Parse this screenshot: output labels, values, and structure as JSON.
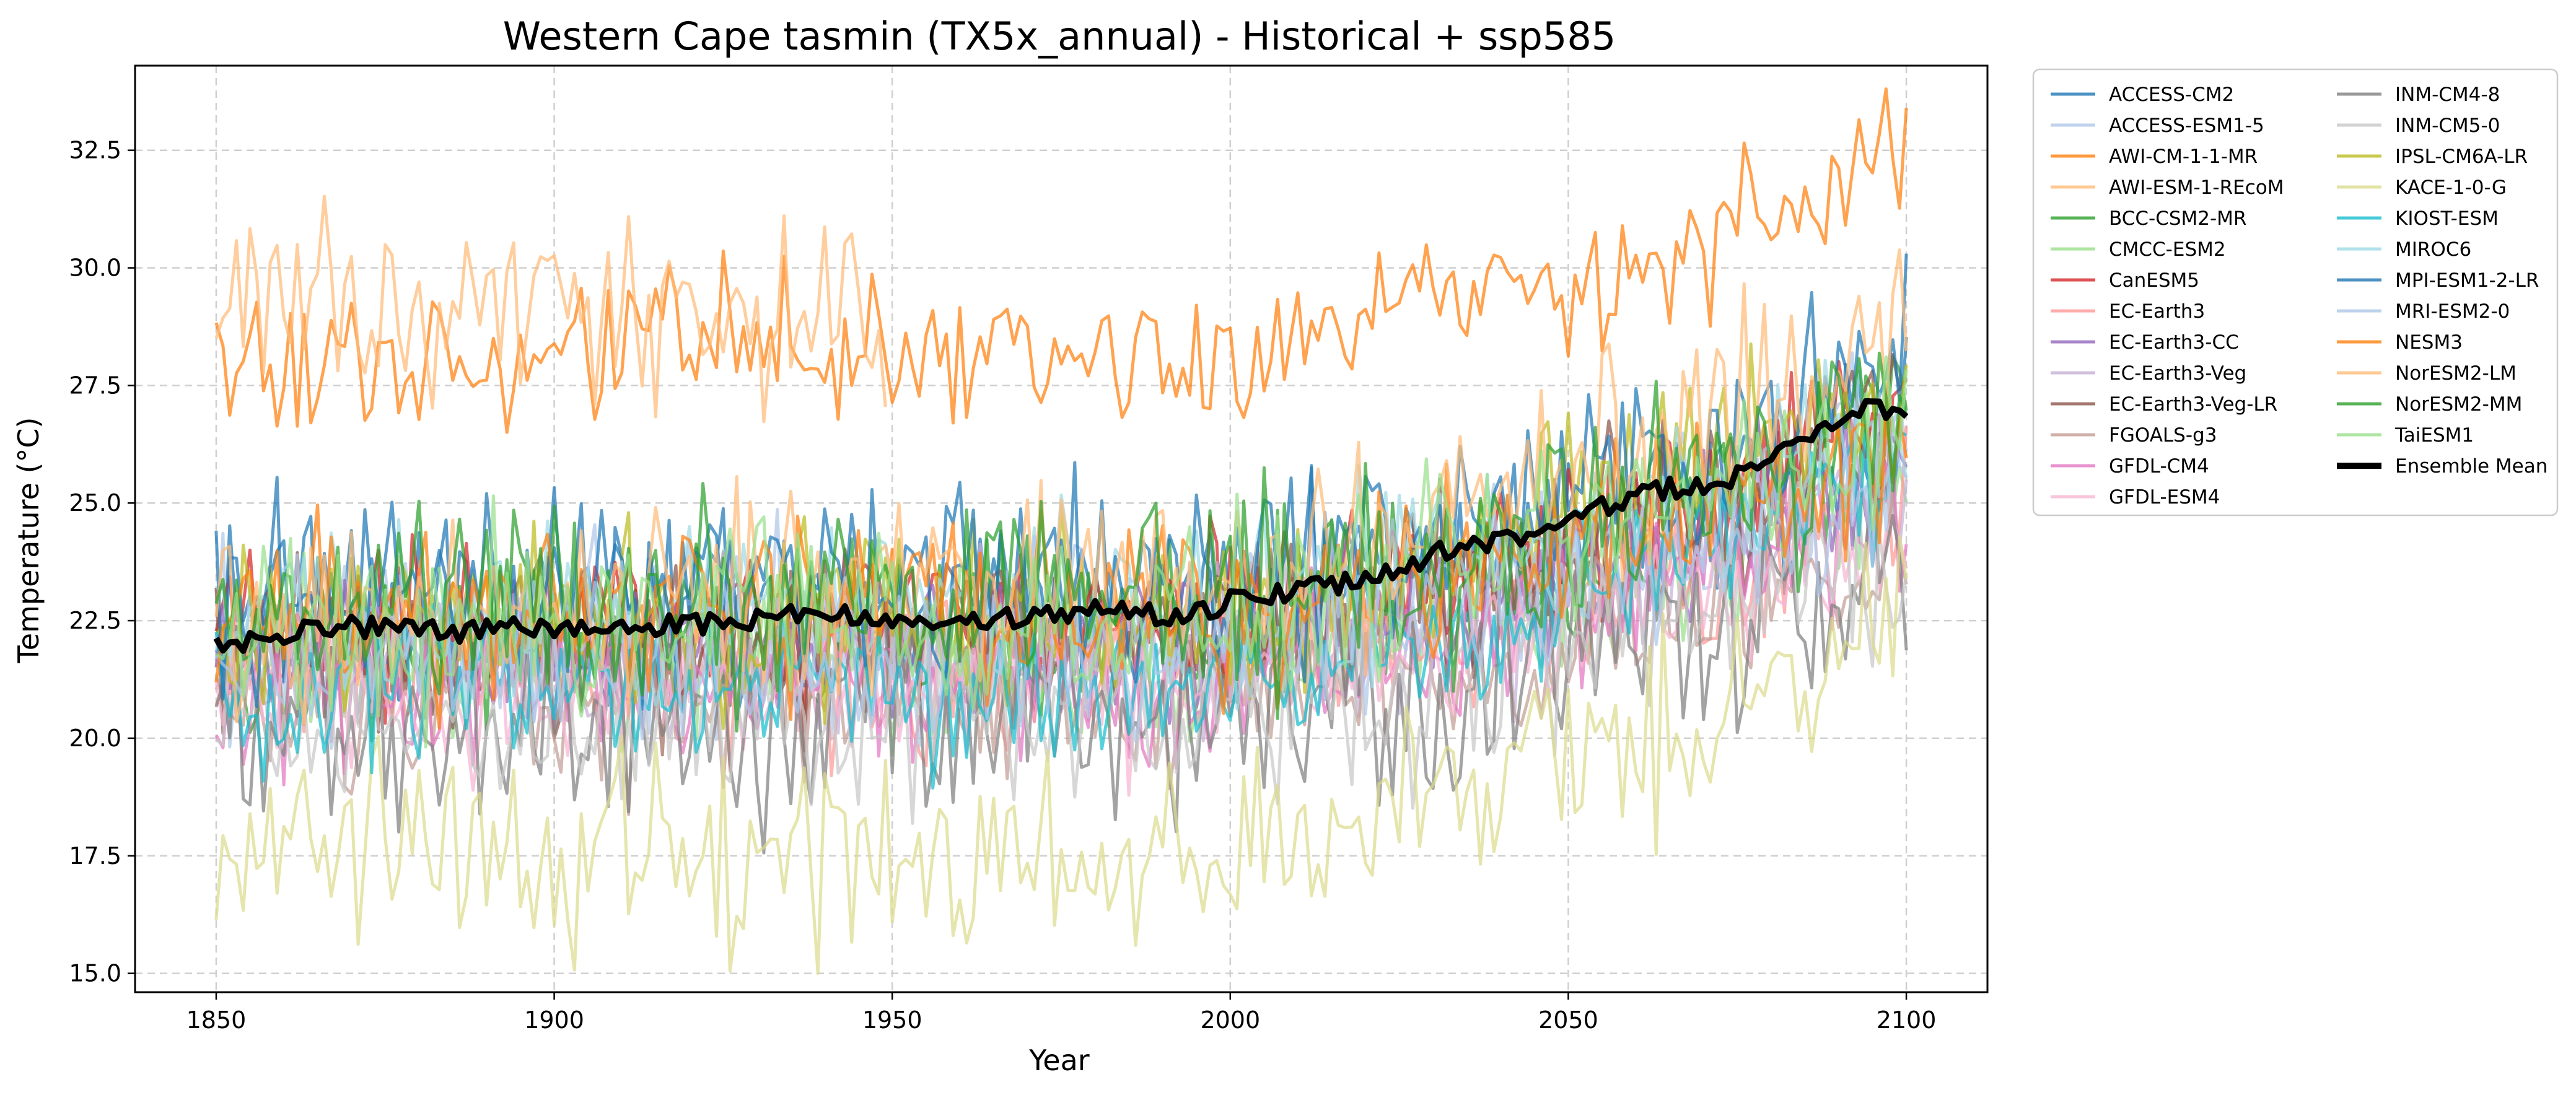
{
  "chart_data": {
    "type": "line",
    "title": "Western Cape tasmin (TX5x_annual) - Historical + ssp585",
    "xlabel": "Year",
    "ylabel": "Temperature (°C)",
    "xlim": [
      1838,
      2112
    ],
    "ylim": [
      14.6,
      34.3
    ],
    "xticks": [
      1850,
      1900,
      1950,
      2000,
      2050,
      2100
    ],
    "yticks": [
      15.0,
      17.5,
      20.0,
      22.5,
      25.0,
      27.5,
      30.0,
      32.5
    ],
    "xtick_labels": [
      "1850",
      "1900",
      "1950",
      "2000",
      "2050",
      "2100"
    ],
    "ytick_labels": [
      "15.0",
      "17.5",
      "20.0",
      "22.5",
      "25.0",
      "27.5",
      "30.0",
      "32.5"
    ],
    "grid": true,
    "legend_position": "outside-right",
    "series": [
      {
        "name": "ACCESS-CM2",
        "color": "#1f77b4",
        "start": 1850,
        "end": 2100,
        "base_start": 22.8,
        "base_mid": 23.0,
        "base_end": 26.5,
        "amp": 1.3,
        "seed": 11
      },
      {
        "name": "ACCESS-ESM1-5",
        "color": "#aec7e8",
        "start": 1850,
        "end": 2100,
        "base_start": 22.0,
        "base_mid": 22.3,
        "base_end": 26.3,
        "amp": 1.4,
        "seed": 12
      },
      {
        "name": "AWI-CM-1-1-MR",
        "color": "#ff7f0e",
        "start": 1850,
        "end": 2100,
        "base_start": 28.1,
        "base_mid": 28.3,
        "base_end": 32.1,
        "amp": 1.0,
        "seed": 13
      },
      {
        "name": "AWI-ESM-1-REcoM",
        "color": "#ffbb78",
        "start": 1850,
        "end": 1949,
        "base_start": 28.8,
        "base_mid": 29.2,
        "base_end": 29.6,
        "amp": 1.3,
        "seed": 14
      },
      {
        "name": "BCC-CSM2-MR",
        "color": "#2ca02c",
        "start": 1850,
        "end": 2100,
        "base_start": 22.0,
        "base_mid": 22.0,
        "base_end": 26.6,
        "amp": 1.3,
        "seed": 15
      },
      {
        "name": "CMCC-ESM2",
        "color": "#98df8a",
        "start": 1850,
        "end": 2100,
        "base_start": 21.6,
        "base_mid": 21.8,
        "base_end": 25.8,
        "amp": 1.2,
        "seed": 16
      },
      {
        "name": "CanESM5",
        "color": "#d62728",
        "start": 1850,
        "end": 2100,
        "base_start": 22.2,
        "base_mid": 22.6,
        "base_end": 27.2,
        "amp": 1.1,
        "seed": 17
      },
      {
        "name": "EC-Earth3",
        "color": "#ff9896",
        "start": 1850,
        "end": 2100,
        "base_start": 21.3,
        "base_mid": 21.6,
        "base_end": 25.2,
        "amp": 1.1,
        "seed": 18
      },
      {
        "name": "EC-Earth3-CC",
        "color": "#9467bd",
        "start": 1850,
        "end": 2100,
        "base_start": 21.8,
        "base_mid": 22.0,
        "base_end": 26.0,
        "amp": 1.1,
        "seed": 19
      },
      {
        "name": "EC-Earth3-Veg",
        "color": "#c5b0d5",
        "start": 1850,
        "end": 2100,
        "base_start": 21.5,
        "base_mid": 21.8,
        "base_end": 25.6,
        "amp": 1.2,
        "seed": 20
      },
      {
        "name": "EC-Earth3-Veg-LR",
        "color": "#8c564b",
        "start": 1850,
        "end": 2100,
        "base_start": 22.0,
        "base_mid": 22.4,
        "base_end": 26.8,
        "amp": 1.2,
        "seed": 21
      },
      {
        "name": "FGOALS-g3",
        "color": "#c49c94",
        "start": 1850,
        "end": 2100,
        "base_start": 20.6,
        "base_mid": 20.8,
        "base_end": 24.0,
        "amp": 1.1,
        "seed": 22
      },
      {
        "name": "GFDL-CM4",
        "color": "#e377c2",
        "start": 1850,
        "end": 2100,
        "base_start": 21.0,
        "base_mid": 21.2,
        "base_end": 24.8,
        "amp": 1.0,
        "seed": 23
      },
      {
        "name": "GFDL-ESM4",
        "color": "#f7b6d2",
        "start": 1850,
        "end": 2100,
        "base_start": 20.8,
        "base_mid": 21.0,
        "base_end": 24.4,
        "amp": 1.0,
        "seed": 24
      },
      {
        "name": "INM-CM4-8",
        "color": "#7f7f7f",
        "start": 1850,
        "end": 2100,
        "base_start": 20.2,
        "base_mid": 20.5,
        "base_end": 23.8,
        "amp": 1.4,
        "seed": 25
      },
      {
        "name": "INM-CM5-0",
        "color": "#c7c7c7",
        "start": 1850,
        "end": 2100,
        "base_start": 20.3,
        "base_mid": 20.6,
        "base_end": 24.0,
        "amp": 1.2,
        "seed": 26
      },
      {
        "name": "IPSL-CM6A-LR",
        "color": "#bcbd22",
        "start": 1850,
        "end": 2100,
        "base_start": 22.2,
        "base_mid": 22.6,
        "base_end": 27.6,
        "amp": 1.2,
        "seed": 27
      },
      {
        "name": "KACE-1-0-G",
        "color": "#dbdb8d",
        "start": 1850,
        "end": 2100,
        "base_start": 17.4,
        "base_mid": 17.6,
        "base_end": 22.6,
        "amp": 1.3,
        "seed": 28
      },
      {
        "name": "KIOST-ESM",
        "color": "#17becf",
        "start": 1850,
        "end": 2100,
        "base_start": 21.0,
        "base_mid": 21.2,
        "base_end": 25.6,
        "amp": 1.0,
        "seed": 29
      },
      {
        "name": "MIROC6",
        "color": "#9edae5",
        "start": 1850,
        "end": 2100,
        "base_start": 22.4,
        "base_mid": 22.8,
        "base_end": 26.8,
        "amp": 1.2,
        "seed": 30
      },
      {
        "name": "MPI-ESM1-2-LR",
        "color": "#1f77b4",
        "start": 1850,
        "end": 2100,
        "base_start": 23.2,
        "base_mid": 23.5,
        "base_end": 28.0,
        "amp": 1.3,
        "seed": 31
      },
      {
        "name": "MRI-ESM2-0",
        "color": "#aec7e8",
        "start": 1850,
        "end": 2100,
        "base_start": 21.8,
        "base_mid": 22.0,
        "base_end": 25.8,
        "amp": 1.2,
        "seed": 32
      },
      {
        "name": "NESM3",
        "color": "#ff7f0e",
        "start": 1850,
        "end": 2100,
        "base_start": 22.4,
        "base_mid": 22.8,
        "base_end": 26.5,
        "amp": 1.2,
        "seed": 33
      },
      {
        "name": "NorESM2-LM",
        "color": "#ffbb78",
        "start": 1850,
        "end": 2100,
        "base_start": 22.6,
        "base_mid": 23.4,
        "base_end": 28.8,
        "amp": 1.3,
        "seed": 34
      },
      {
        "name": "NorESM2-MM",
        "color": "#2ca02c",
        "start": 1850,
        "end": 2100,
        "base_start": 22.5,
        "base_mid": 23.0,
        "base_end": 26.8,
        "amp": 1.4,
        "seed": 35
      },
      {
        "name": "TaiESM1",
        "color": "#98df8a",
        "start": 1850,
        "end": 2100,
        "base_start": 22.2,
        "base_mid": 22.6,
        "base_end": 27.0,
        "amp": 1.2,
        "seed": 36
      }
    ],
    "ensemble_mean": {
      "name": "Ensemble Mean",
      "color": "#000000",
      "x": [
        1850,
        1855,
        1860,
        1865,
        1870,
        1875,
        1880,
        1885,
        1890,
        1895,
        1900,
        1905,
        1910,
        1915,
        1920,
        1925,
        1930,
        1935,
        1940,
        1945,
        1950,
        1955,
        1960,
        1965,
        1970,
        1975,
        1980,
        1985,
        1990,
        1995,
        2000,
        2005,
        2010,
        2015,
        2020,
        2025,
        2030,
        2035,
        2040,
        2045,
        2050,
        2055,
        2060,
        2065,
        2070,
        2075,
        2080,
        2085,
        2090,
        2095,
        2100
      ],
      "y": [
        22.0,
        22.1,
        22.2,
        22.3,
        22.4,
        22.3,
        22.3,
        22.2,
        22.3,
        22.4,
        22.3,
        22.3,
        22.4,
        22.4,
        22.4,
        22.5,
        22.5,
        22.6,
        22.6,
        22.6,
        22.6,
        22.5,
        22.4,
        22.5,
        22.6,
        22.6,
        22.7,
        22.7,
        22.6,
        22.7,
        22.9,
        23.0,
        23.2,
        23.3,
        23.3,
        23.6,
        23.9,
        24.1,
        24.2,
        24.4,
        24.6,
        24.9,
        25.1,
        25.3,
        25.4,
        25.6,
        26.0,
        26.4,
        26.7,
        27.0,
        27.0
      ]
    }
  }
}
